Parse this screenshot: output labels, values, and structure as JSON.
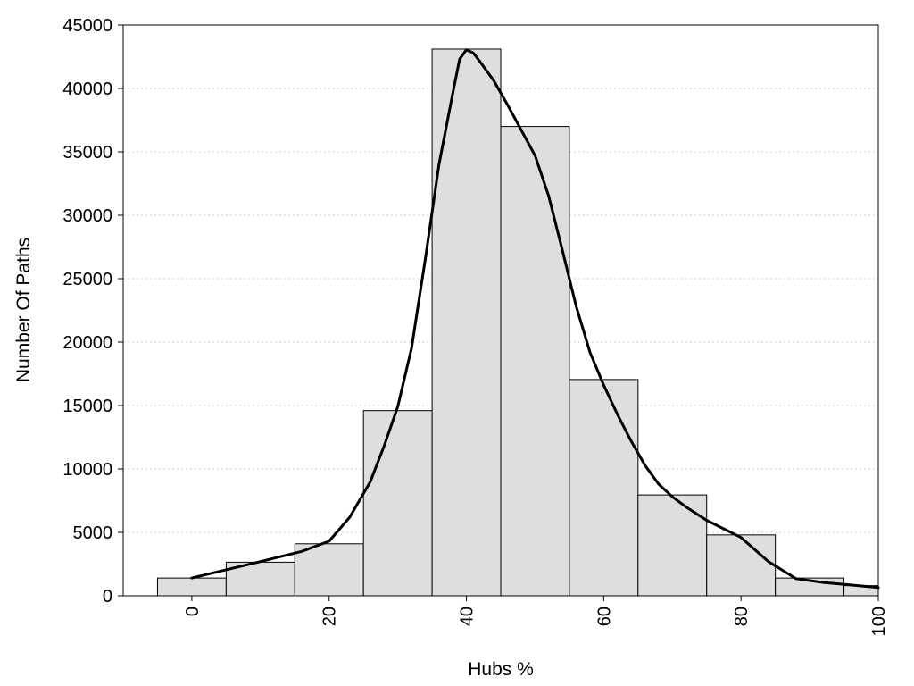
{
  "chart_data": {
    "type": "bar",
    "xlabel": "Hubs %",
    "ylabel": "Number Of Paths",
    "xlim": [
      -10,
      100
    ],
    "ylim": [
      0,
      45000
    ],
    "x_ticks": [
      0,
      20,
      40,
      60,
      80,
      100
    ],
    "y_ticks": [
      0,
      5000,
      10000,
      15000,
      20000,
      25000,
      30000,
      35000,
      40000,
      45000
    ],
    "grid": "horizontal dotted",
    "bin_width": 10,
    "bin_centers": [
      0,
      10,
      20,
      30,
      40,
      50,
      60,
      70,
      80,
      90,
      100
    ],
    "values": [
      1400,
      2650,
      4100,
      14600,
      43100,
      37000,
      17050,
      7950,
      4800,
      1400,
      800
    ],
    "density_curve": {
      "x": [
        0,
        10,
        16,
        20,
        23,
        26,
        28,
        30,
        32,
        34,
        36,
        38,
        39,
        40,
        41,
        42,
        44,
        46,
        48,
        50,
        52,
        54,
        56,
        58,
        60,
        62,
        64,
        66,
        68,
        70,
        72,
        75,
        80,
        84,
        88,
        92,
        96,
        100
      ],
      "y": [
        1400,
        2700,
        3500,
        4300,
        6200,
        9000,
        11800,
        14900,
        19500,
        26500,
        34000,
        39600,
        42300,
        43050,
        42800,
        42100,
        40600,
        38700,
        36700,
        34700,
        31500,
        27200,
        22800,
        19200,
        16600,
        14300,
        12200,
        10300,
        8800,
        7800,
        7000,
        5950,
        4600,
        2700,
        1350,
        1050,
        850,
        650
      ]
    },
    "colors": {
      "bar_fill": "#dedede",
      "bar_stroke": "#000000",
      "curve": "#000000",
      "grid": "#cfcfcf"
    }
  }
}
